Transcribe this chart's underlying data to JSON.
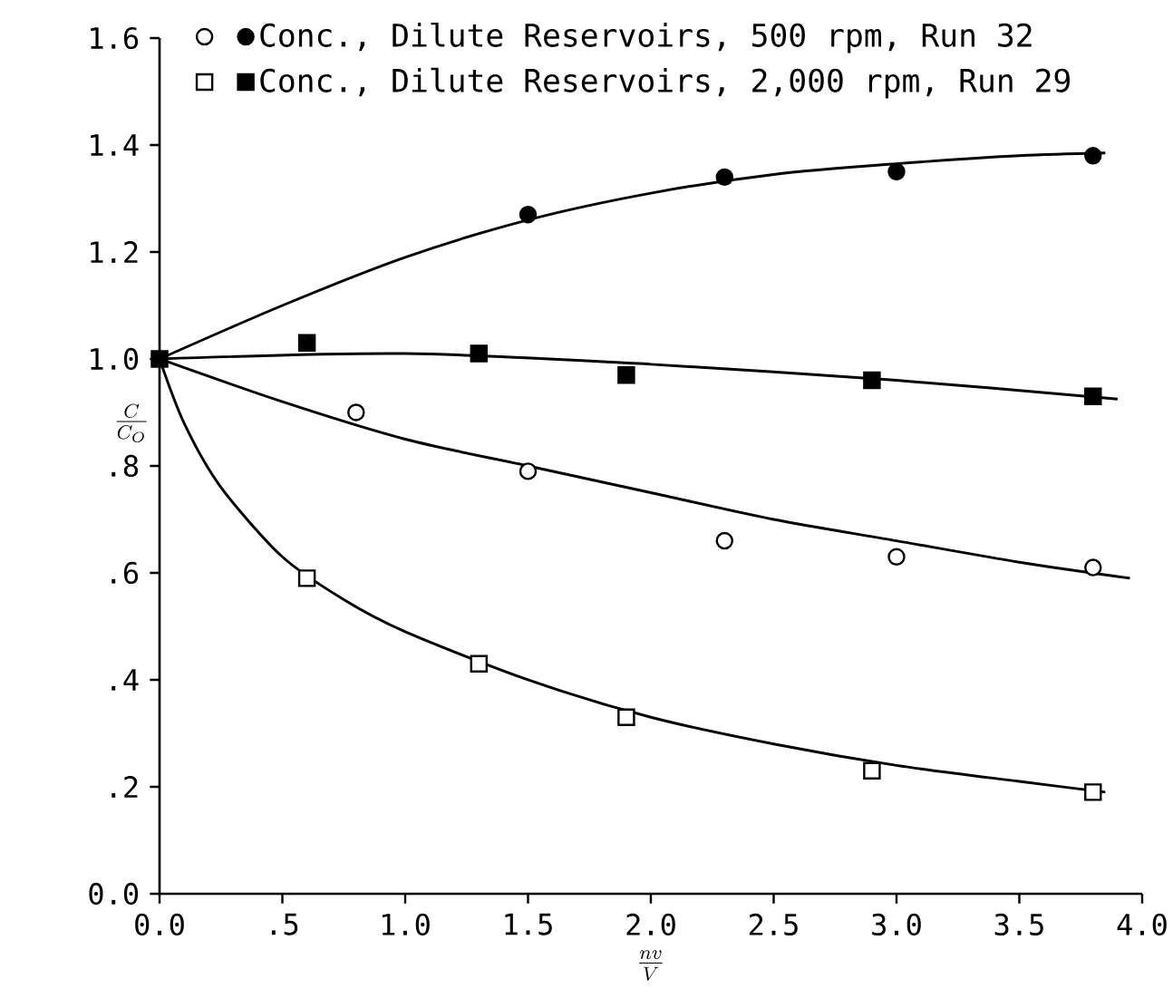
{
  "chart_data": {
    "type": "scatter",
    "xlabel": "\\frac{nv}{V}",
    "ylabel": "\\frac{C}{C_O}",
    "xlim": [
      0,
      4.0
    ],
    "ylim": [
      0,
      1.6
    ],
    "xticks": [
      {
        "value": 0,
        "label": "0.0"
      },
      {
        "value": 0.5,
        "label": ".5"
      },
      {
        "value": 1.0,
        "label": "1.0"
      },
      {
        "value": 1.5,
        "label": "1.5"
      },
      {
        "value": 2.0,
        "label": "2.0"
      },
      {
        "value": 2.5,
        "label": "2.5"
      },
      {
        "value": 3.0,
        "label": "3.0"
      },
      {
        "value": 3.5,
        "label": "3.5"
      },
      {
        "value": 4.0,
        "label": "4.0"
      }
    ],
    "yticks": [
      {
        "value": 0,
        "label": "0.0"
      },
      {
        "value": 0.2,
        "label": ".2"
      },
      {
        "value": 0.4,
        "label": ".4"
      },
      {
        "value": 0.6,
        "label": ".6"
      },
      {
        "value": 0.8,
        "label": ".8"
      },
      {
        "value": 1.0,
        "label": "1.0"
      },
      {
        "value": 1.2,
        "label": "1.2"
      },
      {
        "value": 1.4,
        "label": "1.4"
      },
      {
        "value": 1.6,
        "label": "1.6"
      }
    ],
    "grid": false,
    "legend": "top left",
    "series": [
      {
        "name": "Conc., Dilute Reservoirs, 500 rpm, Run 32",
        "marker": "circle",
        "color": "#000000",
        "x": [
          1.5,
          2.3,
          3.0,
          3.8
        ],
        "values": [
          1.27,
          1.34,
          1.35,
          1.38
        ]
      },
      {
        "marker": "circle",
        "color": "#ffffff",
        "x": [
          0.8,
          1.5,
          2.3,
          3.0,
          3.8
        ],
        "values": [
          0.9,
          0.79,
          0.66,
          0.63,
          0.61
        ]
      },
      {
        "name": "Conc., Dilute Reservoirs, 2,000 rpm, Run 29",
        "marker": "square",
        "color": "#000000",
        "x": [
          0,
          0.6,
          1.3,
          1.9,
          2.9,
          3.8
        ],
        "values": [
          1.0,
          1.03,
          1.01,
          0.97,
          0.96,
          0.93
        ]
      },
      {
        "marker": "square",
        "color": "#ffffff",
        "x": [
          0.6,
          1.3,
          1.9,
          2.9,
          3.8
        ],
        "values": [
          0.59,
          0.43,
          0.33,
          0.23,
          0.19
        ]
      },
      {
        "type": "line",
        "marker": "none",
        "color": "#000000",
        "x": [
          0,
          0.5,
          1.0,
          1.5,
          2.0,
          2.5,
          3.0,
          3.5,
          3.85
        ],
        "values": [
          1.0,
          1.1,
          1.19,
          1.26,
          1.31,
          1.345,
          1.365,
          1.38,
          1.385
        ]
      },
      {
        "type": "line",
        "marker": "none",
        "color": "#000000",
        "x": [
          0,
          1.0,
          2.0,
          3.0,
          3.9
        ],
        "values": [
          1.0,
          1.01,
          0.99,
          0.96,
          0.925
        ]
      },
      {
        "type": "line",
        "marker": "none",
        "color": "#000000",
        "x": [
          0,
          0.5,
          1.0,
          1.5,
          2.0,
          2.5,
          3.0,
          3.5,
          3.95
        ],
        "values": [
          1.0,
          0.92,
          0.85,
          0.8,
          0.75,
          0.7,
          0.66,
          0.62,
          0.59
        ]
      },
      {
        "type": "line",
        "marker": "none",
        "color": "#000000",
        "x": [
          0,
          0.1,
          0.25,
          0.5,
          0.75,
          1.0,
          1.5,
          2.0,
          2.5,
          3.0,
          3.5,
          3.85
        ],
        "values": [
          1.0,
          0.88,
          0.76,
          0.63,
          0.55,
          0.49,
          0.4,
          0.33,
          0.28,
          0.24,
          0.21,
          0.19
        ]
      }
    ]
  }
}
